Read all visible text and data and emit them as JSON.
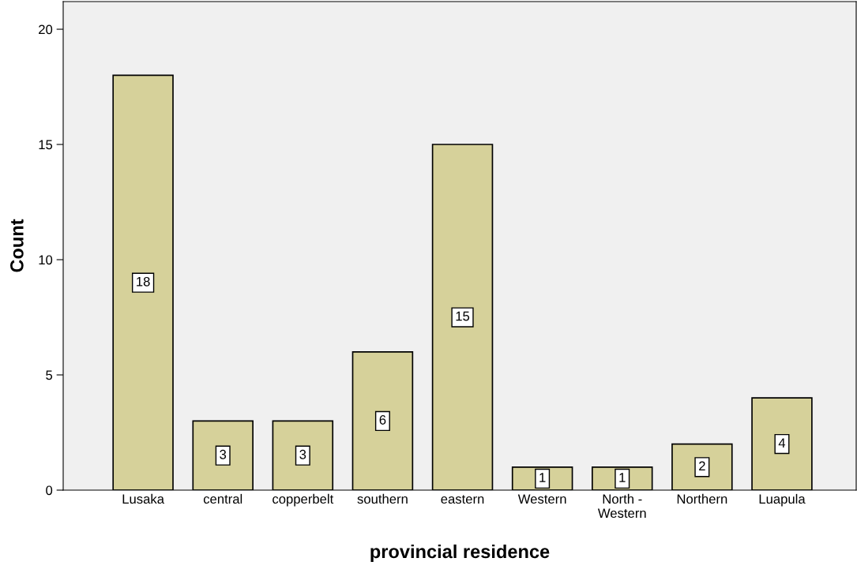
{
  "chart_data": {
    "type": "bar",
    "xlabel": "provincial residence",
    "ylabel": "Count",
    "categories": [
      "Lusaka",
      "central",
      "copperbelt",
      "southern",
      "eastern",
      "Western",
      "North -\nWestern",
      "Northern",
      "Luapula"
    ],
    "values": [
      18,
      3,
      3,
      6,
      15,
      1,
      1,
      2,
      4
    ],
    "color": "#d6d19a",
    "ylim": [
      0,
      21.2
    ],
    "yticks": [
      0,
      5,
      10,
      15,
      20
    ],
    "data_labels": true,
    "grid": false
  }
}
